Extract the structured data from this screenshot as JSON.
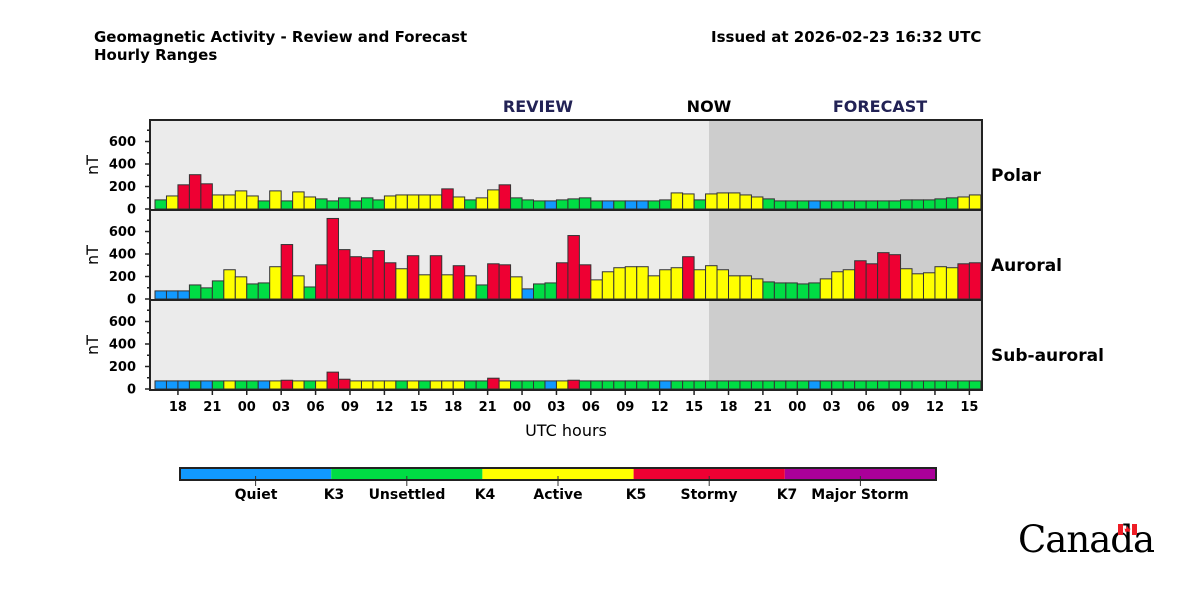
{
  "header": {
    "title_line1": "Geomagnetic Activity - Review and Forecast",
    "title_line2": "Hourly Ranges",
    "issued": "Issued at 2026-02-23 16:32 UTC"
  },
  "logo_text": "Canada",
  "chart_data": {
    "type": "bar",
    "section_labels": {
      "review": "REVIEW",
      "now": "NOW",
      "forecast": "FORECAST"
    },
    "xlabel": "UTC hours",
    "ylabel": "nT",
    "xtick_labels": [
      "18",
      "21",
      "00",
      "03",
      "06",
      "09",
      "12",
      "15",
      "18",
      "21",
      "00",
      "03",
      "06",
      "09",
      "12",
      "15",
      "18",
      "21",
      "00",
      "03",
      "06",
      "09",
      "12",
      "15"
    ],
    "ytick_labels": [
      "0",
      "200",
      "400",
      "600"
    ],
    "ylim": [
      0,
      800
    ],
    "review_bar_count": 48,
    "forecast_bar_count": 24,
    "activity_colors": {
      "Q": "#1199ff",
      "U": "#00dd44",
      "A": "#ffff00",
      "S": "#ee0033",
      "M": "#aa0099"
    },
    "panels": [
      {
        "name": "Polar",
        "values": [
          81,
          116,
          215,
          305,
          224,
          125,
          125,
          161,
          116,
          72,
          161,
          72,
          152,
          107,
          90,
          72,
          99,
          72,
          99,
          81,
          116,
          125,
          125,
          125,
          125,
          179,
          107,
          81,
          99,
          170,
          215,
          99,
          81,
          72,
          72,
          81,
          90,
          99,
          72,
          72,
          72,
          72,
          72,
          72,
          81,
          143,
          134,
          81,
          134,
          143,
          143,
          125,
          107,
          90,
          72,
          72,
          72,
          72,
          72,
          72,
          72,
          72,
          72,
          72,
          72,
          81,
          81,
          81,
          90,
          99,
          107,
          125
        ],
        "levels": "UASSSAAAAUAUAAUUUUUUAAAAASAUAASUUUQUUUUQUQQUUAAUAAAAAUUUUQUUUUUUUUUUUUAA"
      },
      {
        "name": "Auroral",
        "values": [
          72,
          72,
          72,
          125,
          99,
          161,
          260,
          197,
          134,
          143,
          287,
          484,
          206,
          107,
          304,
          716,
          439,
          376,
          367,
          430,
          322,
          269,
          385,
          215,
          385,
          215,
          296,
          206,
          125,
          313,
          304,
          197,
          90,
          134,
          143,
          322,
          564,
          304,
          170,
          242,
          278,
          287,
          287,
          206,
          260,
          278,
          376,
          260,
          296,
          260,
          206,
          206,
          179,
          152,
          143,
          143,
          134,
          143,
          179,
          242,
          260,
          340,
          313,
          412,
          394,
          269,
          224,
          233,
          287,
          278,
          313,
          322
        ],
        "levels": "QQQUUUAAUUASAUSSSSSSSASASASAUSSAQUUSSSAAAAAAAASAAAAAAUUUUUAAASSSSAAAAASS"
      },
      {
        "name": "Sub-auroral",
        "values": [
          72,
          72,
          72,
          72,
          72,
          72,
          72,
          72,
          72,
          72,
          72,
          78,
          72,
          72,
          72,
          150,
          87,
          72,
          72,
          72,
          72,
          72,
          72,
          72,
          72,
          72,
          72,
          72,
          72,
          96,
          72,
          72,
          72,
          72,
          72,
          72,
          78,
          72,
          72,
          72,
          72,
          72,
          72,
          72,
          72,
          72,
          72,
          72,
          72,
          72,
          72,
          72,
          72,
          72,
          72,
          72,
          72,
          72,
          72,
          72,
          72,
          72,
          72,
          72,
          72,
          72,
          72,
          72,
          72,
          72,
          72,
          72
        ],
        "levels": "QQQUQUAUUQASAUASSAAAAUAUAAAUUSAUUUQASUUUUUUUQUUUUUUUUUUUUQUUUUUUUUUUUUUU"
      }
    ],
    "legend": {
      "colors": [
        "#1199ff",
        "#00dd44",
        "#ffff00",
        "#ee0033",
        "#aa0099"
      ],
      "labels": [
        "Quiet",
        "K3",
        "Unsettled",
        "K4",
        "Active",
        "K5",
        "Stormy",
        "K7",
        "Major Storm"
      ]
    }
  }
}
